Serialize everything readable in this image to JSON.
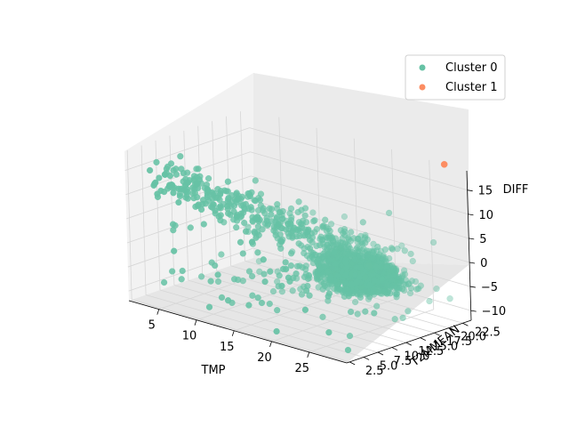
{
  "chart_data": {
    "type": "scatter",
    "projection": "3d",
    "title": "",
    "xlabel": "TMP",
    "ylabel": "T2MMEAN",
    "zlabel": "DIFF",
    "xlim": [
      1,
      30
    ],
    "ylim": [
      2,
      24
    ],
    "zlim": [
      -12,
      19
    ],
    "xticks": [
      "5",
      "10",
      "15",
      "20",
      "25"
    ],
    "yticks": [
      "2.5",
      "5.0",
      "7.5",
      "10.0",
      "12.5",
      "15.0",
      "17.5",
      "20.0",
      "22.5"
    ],
    "zticks": [
      "−10",
      "−5",
      "0",
      "5",
      "10",
      "15"
    ],
    "grid": true,
    "legend": {
      "placement": "top-right"
    },
    "series": [
      {
        "name": "Cluster 0",
        "color": "#66c2a5",
        "point_count_estimate": 4000,
        "points": [
          [
            24,
            20,
            -4
          ],
          [
            23,
            19,
            -3
          ],
          [
            22,
            18,
            -2
          ],
          [
            25,
            21,
            -5
          ],
          [
            20,
            17,
            -1
          ],
          [
            18,
            15,
            0
          ],
          [
            16,
            14,
            1
          ],
          [
            14,
            12,
            2
          ],
          [
            12,
            10,
            4
          ],
          [
            10,
            9,
            6
          ],
          [
            8,
            8,
            8
          ],
          [
            6,
            6,
            10
          ],
          [
            5,
            5,
            12
          ],
          [
            4,
            4,
            14
          ],
          [
            7,
            7,
            16
          ],
          [
            27,
            22,
            -6
          ],
          [
            28,
            23,
            -8
          ],
          [
            26,
            22,
            -9
          ],
          [
            21,
            17,
            3
          ],
          [
            19,
            16,
            5
          ],
          [
            22,
            16,
            8
          ],
          [
            24,
            18,
            10
          ],
          [
            15,
            10,
            -6
          ],
          [
            13,
            8,
            -8
          ],
          [
            11,
            7,
            -10
          ],
          [
            9,
            6,
            -6
          ],
          [
            17,
            12,
            -4
          ],
          [
            20,
            14,
            -2
          ],
          [
            23,
            15,
            0
          ],
          [
            26,
            19,
            2
          ],
          [
            25,
            20,
            -7
          ],
          [
            18,
            18,
            -3
          ],
          [
            21,
            21,
            -2
          ],
          [
            14,
            16,
            -1
          ],
          [
            12,
            14,
            1
          ]
        ]
      },
      {
        "name": "Cluster 1",
        "color": "#fc8d62",
        "point_count_estimate": 1,
        "points": [
          [
            27,
            24,
            19
          ]
        ]
      }
    ]
  }
}
